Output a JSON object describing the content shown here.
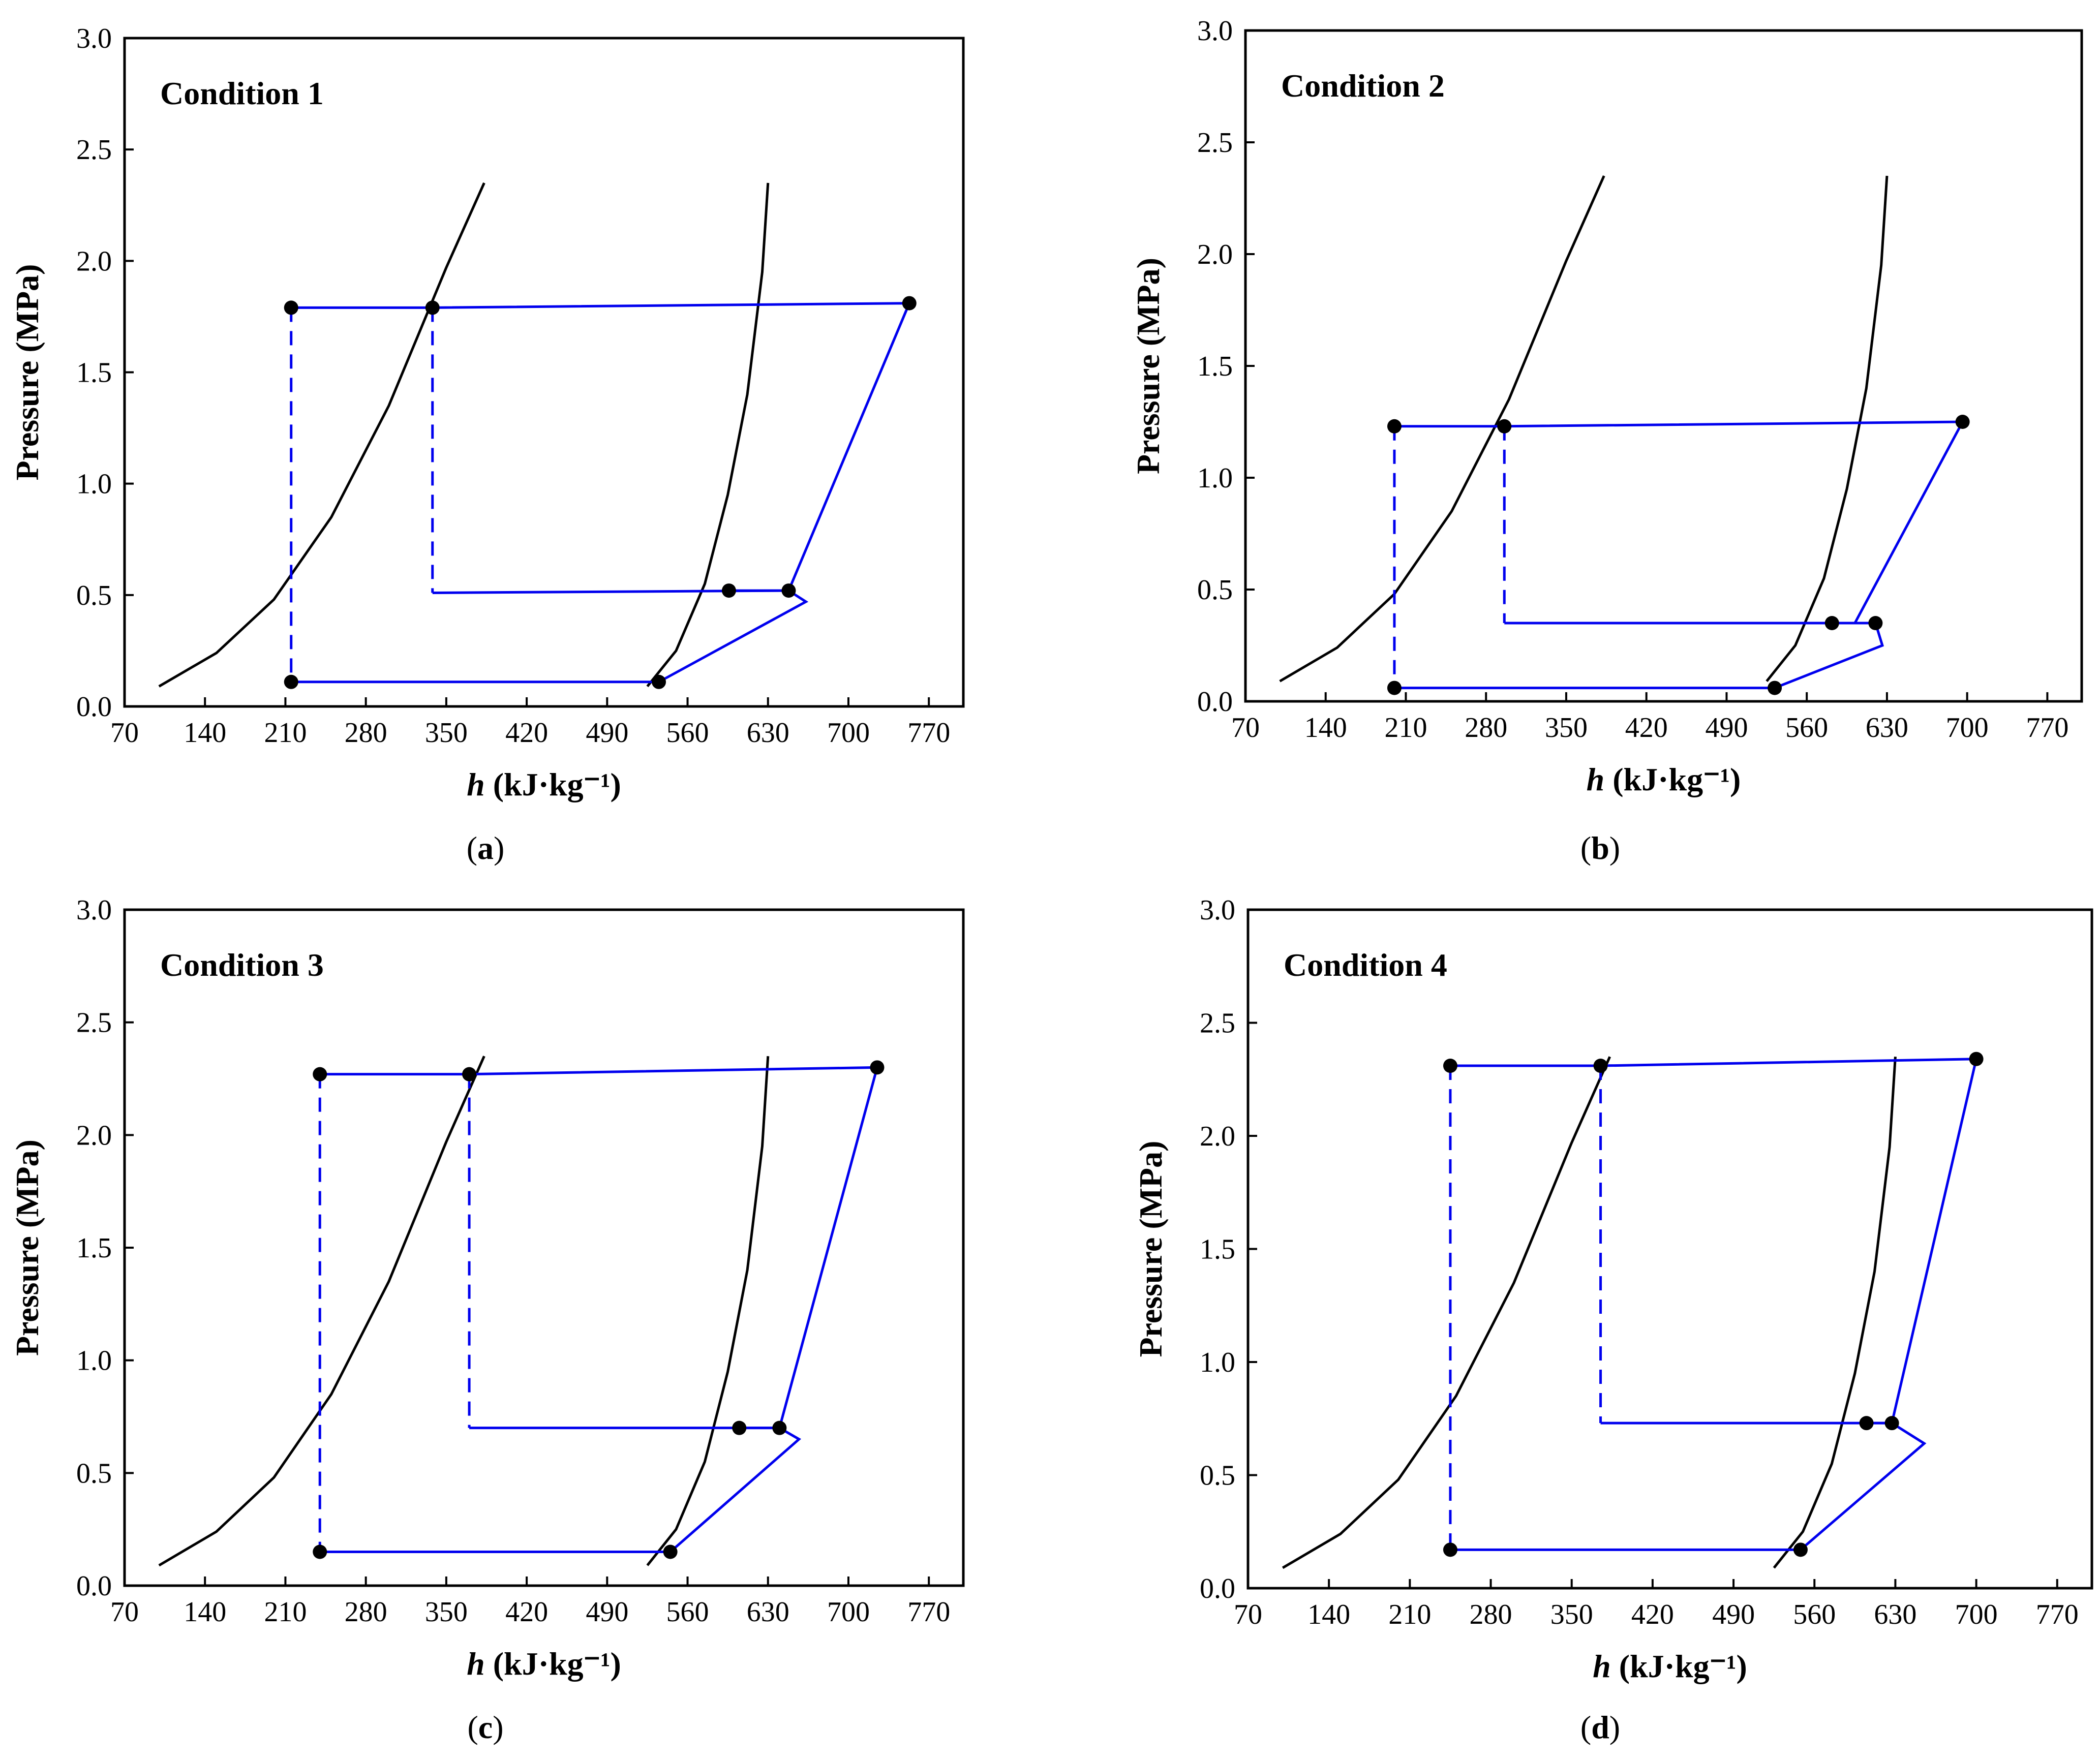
{
  "chart_data": [
    {
      "type": "line",
      "panel_label": "a",
      "condition_label": "Condition 1",
      "xlabel_symbol": "h",
      "xlabel_units": " (kJ·kg⁻¹)",
      "ylabel": "Pressure (MPa)",
      "xlim": [
        70,
        800
      ],
      "ylim": [
        0,
        3.0
      ],
      "xticks": [
        70,
        140,
        210,
        280,
        350,
        420,
        490,
        560,
        630,
        700,
        770
      ],
      "yticks": [
        "0.0",
        "0.5",
        "1.0",
        "1.5",
        "2.0",
        "2.5",
        "3.0"
      ],
      "colors": {
        "cycle": "#0000ee",
        "dome": "#000000",
        "points": "#000000"
      },
      "saturation_liquid": {
        "x": [
          100,
          150,
          200,
          250,
          300,
          350,
          383
        ],
        "y": [
          0.09,
          0.24,
          0.48,
          0.85,
          1.35,
          1.97,
          2.35
        ]
      },
      "saturation_vapor": {
        "x": [
          525,
          550,
          575,
          595,
          612,
          625,
          630
        ],
        "y": [
          0.09,
          0.25,
          0.55,
          0.95,
          1.4,
          1.95,
          2.35
        ]
      },
      "cycle_solid": [
        [
          215,
          1.79
        ],
        [
          338,
          1.79
        ],
        [
          753,
          1.81
        ],
        [
          648,
          0.52
        ],
        [
          338,
          0.51
        ]
      ],
      "cycle_solid_lower": [
        [
          215,
          0.11
        ],
        [
          535,
          0.11
        ],
        [
          663,
          0.47
        ],
        [
          648,
          0.52
        ],
        [
          596,
          0.52
        ]
      ],
      "cycle_dashed": [
        [
          [
            215,
            1.79
          ],
          [
            215,
            0.11
          ]
        ],
        [
          [
            338,
            1.79
          ],
          [
            338,
            0.51
          ]
        ]
      ],
      "points": [
        [
          215,
          1.79
        ],
        [
          338,
          1.79
        ],
        [
          753,
          1.81
        ],
        [
          596,
          0.52
        ],
        [
          648,
          0.52
        ],
        [
          215,
          0.11
        ],
        [
          535,
          0.11
        ]
      ]
    },
    {
      "type": "line",
      "panel_label": "b",
      "condition_label": "Condition 2",
      "xlabel_symbol": "h",
      "xlabel_units": " (kJ·kg⁻¹)",
      "ylabel": "Pressure (MPa)",
      "xlim": [
        70,
        800
      ],
      "ylim": [
        0,
        3.0
      ],
      "xticks": [
        70,
        140,
        210,
        280,
        350,
        420,
        490,
        560,
        630,
        700,
        770
      ],
      "yticks": [
        "0.0",
        "0.5",
        "1.0",
        "1.5",
        "2.0",
        "2.5",
        "3.0"
      ],
      "colors": {
        "cycle": "#0000ee",
        "dome": "#000000",
        "points": "#000000"
      },
      "saturation_liquid": {
        "x": [
          100,
          150,
          200,
          250,
          300,
          350,
          383
        ],
        "y": [
          0.09,
          0.24,
          0.48,
          0.85,
          1.35,
          1.97,
          2.35
        ]
      },
      "saturation_vapor": {
        "x": [
          525,
          550,
          575,
          595,
          612,
          625,
          630
        ],
        "y": [
          0.09,
          0.25,
          0.55,
          0.95,
          1.4,
          1.95,
          2.35
        ]
      },
      "cycle_solid": [
        [
          200,
          1.23
        ],
        [
          296,
          1.23
        ],
        [
          696,
          1.25
        ],
        [
          602,
          0.35
        ],
        [
          296,
          0.35
        ]
      ],
      "cycle_solid_lower": [
        [
          200,
          0.06
        ],
        [
          532,
          0.06
        ],
        [
          626,
          0.25
        ],
        [
          620,
          0.35
        ],
        [
          582,
          0.35
        ]
      ],
      "cycle_dashed": [
        [
          [
            200,
            1.23
          ],
          [
            200,
            0.06
          ]
        ],
        [
          [
            296,
            1.23
          ],
          [
            296,
            0.35
          ]
        ]
      ],
      "points": [
        [
          200,
          1.23
        ],
        [
          296,
          1.23
        ],
        [
          696,
          1.25
        ],
        [
          582,
          0.35
        ],
        [
          620,
          0.35
        ],
        [
          200,
          0.06
        ],
        [
          532,
          0.06
        ]
      ]
    },
    {
      "type": "line",
      "panel_label": "c",
      "condition_label": "Condition 3",
      "xlabel_symbol": "h",
      "xlabel_units": " (kJ·kg⁻¹)",
      "ylabel": "Pressure (MPa)",
      "xlim": [
        70,
        800
      ],
      "ylim": [
        0,
        3.0
      ],
      "xticks": [
        70,
        140,
        210,
        280,
        350,
        420,
        490,
        560,
        630,
        700,
        770
      ],
      "yticks": [
        "0.0",
        "0.5",
        "1.0",
        "1.5",
        "2.0",
        "2.5",
        "3.0"
      ],
      "colors": {
        "cycle": "#0000ee",
        "dome": "#000000",
        "points": "#000000"
      },
      "saturation_liquid": {
        "x": [
          100,
          150,
          200,
          250,
          300,
          350,
          383
        ],
        "y": [
          0.09,
          0.24,
          0.48,
          0.85,
          1.35,
          1.97,
          2.35
        ]
      },
      "saturation_vapor": {
        "x": [
          525,
          550,
          575,
          595,
          612,
          625,
          630
        ],
        "y": [
          0.09,
          0.25,
          0.55,
          0.95,
          1.4,
          1.95,
          2.35
        ]
      },
      "cycle_solid": [
        [
          240,
          2.27
        ],
        [
          370,
          2.27
        ],
        [
          725,
          2.3
        ],
        [
          640,
          0.7
        ],
        [
          370,
          0.7
        ]
      ],
      "cycle_solid_lower": [
        [
          240,
          0.15
        ],
        [
          545,
          0.15
        ],
        [
          657,
          0.65
        ],
        [
          640,
          0.7
        ],
        [
          605,
          0.7
        ]
      ],
      "cycle_dashed": [
        [
          [
            240,
            2.27
          ],
          [
            240,
            0.15
          ]
        ],
        [
          [
            370,
            2.27
          ],
          [
            370,
            0.7
          ]
        ]
      ],
      "points": [
        [
          240,
          2.27
        ],
        [
          370,
          2.27
        ],
        [
          725,
          2.3
        ],
        [
          605,
          0.7
        ],
        [
          640,
          0.7
        ],
        [
          240,
          0.15
        ],
        [
          545,
          0.15
        ]
      ]
    },
    {
      "type": "line",
      "panel_label": "d",
      "condition_label": "Condition 4",
      "xlabel_symbol": "h",
      "xlabel_units": " (kJ·kg⁻¹)",
      "ylabel": "Pressure (MPa)",
      "xlim": [
        70,
        800
      ],
      "ylim": [
        0,
        3.0
      ],
      "xticks": [
        70,
        140,
        210,
        280,
        350,
        420,
        490,
        560,
        630,
        700,
        770
      ],
      "yticks": [
        "0.0",
        "0.5",
        "1.0",
        "1.5",
        "2.0",
        "2.5",
        "3.0"
      ],
      "colors": {
        "cycle": "#0000ee",
        "dome": "#000000",
        "points": "#000000"
      },
      "saturation_liquid": {
        "x": [
          100,
          150,
          200,
          250,
          300,
          350,
          383
        ],
        "y": [
          0.09,
          0.24,
          0.48,
          0.85,
          1.35,
          1.97,
          2.35
        ]
      },
      "saturation_vapor": {
        "x": [
          525,
          550,
          575,
          595,
          612,
          625,
          630
        ],
        "y": [
          0.09,
          0.25,
          0.55,
          0.95,
          1.4,
          1.95,
          2.35
        ]
      },
      "cycle_solid": [
        [
          245,
          2.31
        ],
        [
          375,
          2.31
        ],
        [
          700,
          2.34
        ],
        [
          627,
          0.73
        ],
        [
          375,
          0.73
        ]
      ],
      "cycle_solid_lower": [
        [
          245,
          0.17
        ],
        [
          548,
          0.17
        ],
        [
          655,
          0.64
        ],
        [
          627,
          0.73
        ],
        [
          605,
          0.73
        ]
      ],
      "cycle_dashed": [
        [
          [
            245,
            2.31
          ],
          [
            245,
            0.17
          ]
        ],
        [
          [
            375,
            2.31
          ],
          [
            375,
            0.73
          ]
        ]
      ],
      "points": [
        [
          245,
          2.31
        ],
        [
          375,
          2.31
        ],
        [
          700,
          2.34
        ],
        [
          605,
          0.73
        ],
        [
          627,
          0.73
        ],
        [
          245,
          0.17
        ],
        [
          548,
          0.17
        ]
      ]
    }
  ]
}
